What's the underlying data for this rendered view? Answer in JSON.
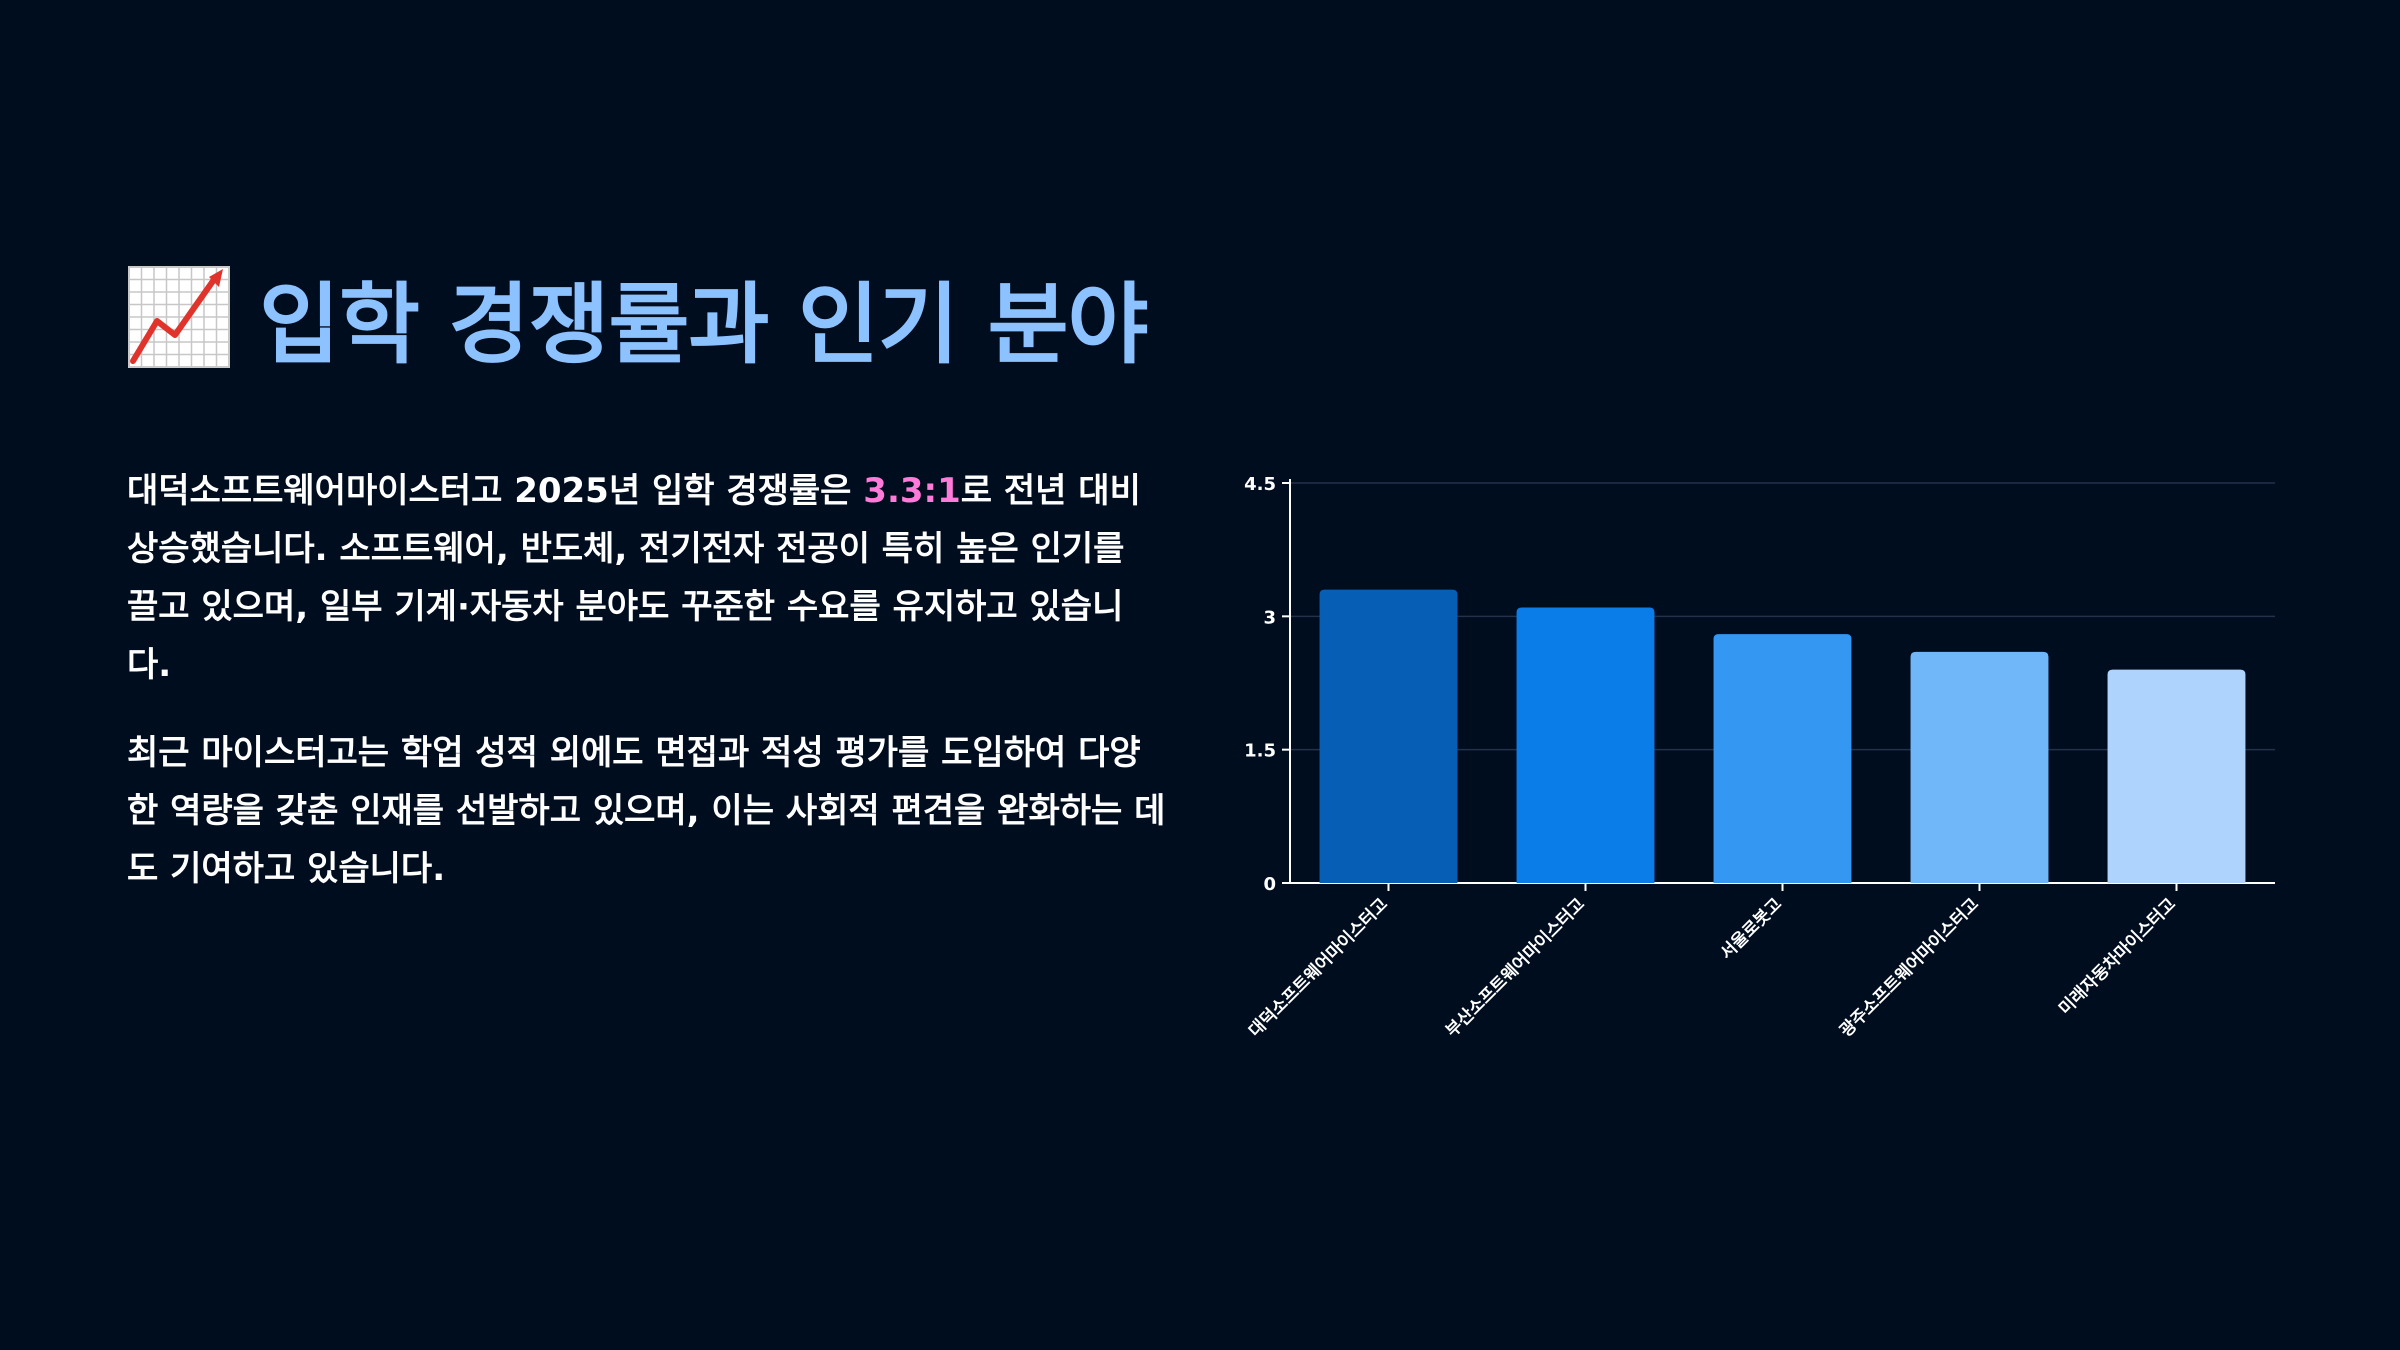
{
  "slide": {
    "title": "입학 경쟁률과 인기 분야",
    "title_icon": "chart-increasing-icon",
    "paragraph1": {
      "before": "대덕소프트웨어마이스터고 2025년 입학 경쟁률은 ",
      "highlight": "3.3:1",
      "after": "로 전년 대비 상승했습니다. 소프트웨어, 반도체, 전기전자 전공이 특히 높은 인기를 끌고 있으며, 일부 기계·자동차 분야도 꾸준한 수요를 유지하고 있습니다."
    },
    "paragraph2": "최근 마이스터고는 학업 성적 외에도 면접과 적성 평가를 도입하여 다양한 역량을 갖춘 인재를 선발하고 있으며, 이는 사회적 편견을 완화하는 데도 기여하고 있습니다.",
    "colors": {
      "background": "#000d1f",
      "title": "#8cc2ff",
      "highlight": "#ff7ad9"
    }
  },
  "chart_data": {
    "type": "bar",
    "categories": [
      "대덕소프트웨어마이스터고",
      "부산소프트웨어마이스터고",
      "서울로봇고",
      "광주소프트웨어마이스터고",
      "미래자동차마이스터고"
    ],
    "values": [
      3.3,
      3.1,
      2.8,
      2.6,
      2.4
    ],
    "colors": [
      "#075fb5",
      "#0a7de8",
      "#3497f2",
      "#6fb7f8",
      "#aed4fd"
    ],
    "ylim": [
      0,
      4.5
    ],
    "yticks": [
      0,
      1.5,
      3,
      4.5
    ],
    "ytick_labels": [
      "0",
      "1.5",
      "3",
      "4.5"
    ],
    "grid": true,
    "legend": "none"
  }
}
